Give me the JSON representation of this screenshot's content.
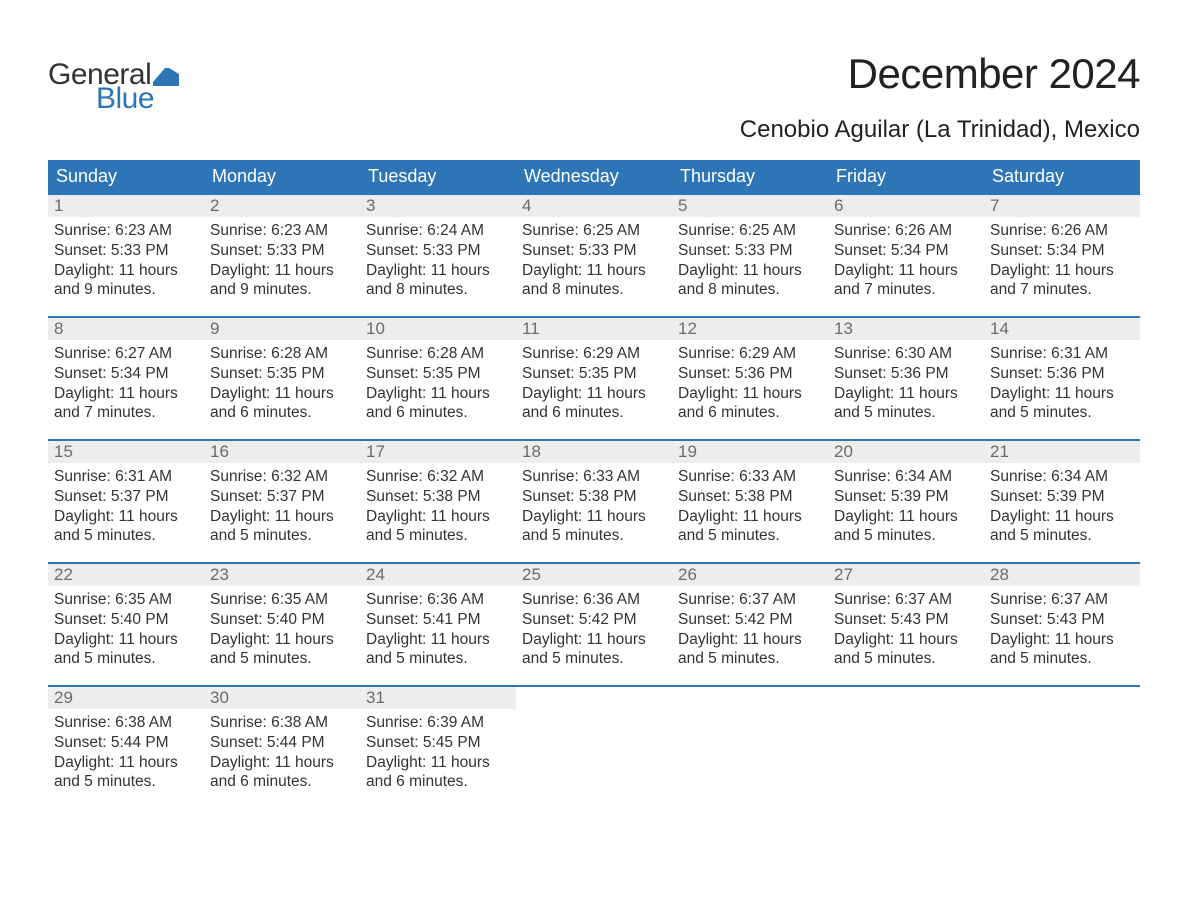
{
  "logo": {
    "general": "General",
    "blue": "Blue",
    "flag_color": "#2e75b6"
  },
  "title": "December 2024",
  "location": "Cenobio Aguilar (La Trinidad), Mexico",
  "colors": {
    "header_bg": "#2e75b6",
    "header_text": "#ffffff",
    "daynum_bg": "#ededed",
    "daynum_text": "#6b6b6b",
    "body_text": "#333333",
    "row_border": "#2e75b6",
    "page_bg": "#ffffff"
  },
  "typography": {
    "title_fontsize": 42,
    "location_fontsize": 24,
    "header_fontsize": 18,
    "daynum_fontsize": 17,
    "cell_fontsize": 15.5,
    "logo_fontsize": 30
  },
  "weekdays": [
    "Sunday",
    "Monday",
    "Tuesday",
    "Wednesday",
    "Thursday",
    "Friday",
    "Saturday"
  ],
  "weeks": [
    [
      {
        "day": "1",
        "sunrise": "6:23 AM",
        "sunset": "5:33 PM",
        "daylight": "11 hours and 9 minutes."
      },
      {
        "day": "2",
        "sunrise": "6:23 AM",
        "sunset": "5:33 PM",
        "daylight": "11 hours and 9 minutes."
      },
      {
        "day": "3",
        "sunrise": "6:24 AM",
        "sunset": "5:33 PM",
        "daylight": "11 hours and 8 minutes."
      },
      {
        "day": "4",
        "sunrise": "6:25 AM",
        "sunset": "5:33 PM",
        "daylight": "11 hours and 8 minutes."
      },
      {
        "day": "5",
        "sunrise": "6:25 AM",
        "sunset": "5:33 PM",
        "daylight": "11 hours and 8 minutes."
      },
      {
        "day": "6",
        "sunrise": "6:26 AM",
        "sunset": "5:34 PM",
        "daylight": "11 hours and 7 minutes."
      },
      {
        "day": "7",
        "sunrise": "6:26 AM",
        "sunset": "5:34 PM",
        "daylight": "11 hours and 7 minutes."
      }
    ],
    [
      {
        "day": "8",
        "sunrise": "6:27 AM",
        "sunset": "5:34 PM",
        "daylight": "11 hours and 7 minutes."
      },
      {
        "day": "9",
        "sunrise": "6:28 AM",
        "sunset": "5:35 PM",
        "daylight": "11 hours and 6 minutes."
      },
      {
        "day": "10",
        "sunrise": "6:28 AM",
        "sunset": "5:35 PM",
        "daylight": "11 hours and 6 minutes."
      },
      {
        "day": "11",
        "sunrise": "6:29 AM",
        "sunset": "5:35 PM",
        "daylight": "11 hours and 6 minutes."
      },
      {
        "day": "12",
        "sunrise": "6:29 AM",
        "sunset": "5:36 PM",
        "daylight": "11 hours and 6 minutes."
      },
      {
        "day": "13",
        "sunrise": "6:30 AM",
        "sunset": "5:36 PM",
        "daylight": "11 hours and 5 minutes."
      },
      {
        "day": "14",
        "sunrise": "6:31 AM",
        "sunset": "5:36 PM",
        "daylight": "11 hours and 5 minutes."
      }
    ],
    [
      {
        "day": "15",
        "sunrise": "6:31 AM",
        "sunset": "5:37 PM",
        "daylight": "11 hours and 5 minutes."
      },
      {
        "day": "16",
        "sunrise": "6:32 AM",
        "sunset": "5:37 PM",
        "daylight": "11 hours and 5 minutes."
      },
      {
        "day": "17",
        "sunrise": "6:32 AM",
        "sunset": "5:38 PM",
        "daylight": "11 hours and 5 minutes."
      },
      {
        "day": "18",
        "sunrise": "6:33 AM",
        "sunset": "5:38 PM",
        "daylight": "11 hours and 5 minutes."
      },
      {
        "day": "19",
        "sunrise": "6:33 AM",
        "sunset": "5:38 PM",
        "daylight": "11 hours and 5 minutes."
      },
      {
        "day": "20",
        "sunrise": "6:34 AM",
        "sunset": "5:39 PM",
        "daylight": "11 hours and 5 minutes."
      },
      {
        "day": "21",
        "sunrise": "6:34 AM",
        "sunset": "5:39 PM",
        "daylight": "11 hours and 5 minutes."
      }
    ],
    [
      {
        "day": "22",
        "sunrise": "6:35 AM",
        "sunset": "5:40 PM",
        "daylight": "11 hours and 5 minutes."
      },
      {
        "day": "23",
        "sunrise": "6:35 AM",
        "sunset": "5:40 PM",
        "daylight": "11 hours and 5 minutes."
      },
      {
        "day": "24",
        "sunrise": "6:36 AM",
        "sunset": "5:41 PM",
        "daylight": "11 hours and 5 minutes."
      },
      {
        "day": "25",
        "sunrise": "6:36 AM",
        "sunset": "5:42 PM",
        "daylight": "11 hours and 5 minutes."
      },
      {
        "day": "26",
        "sunrise": "6:37 AM",
        "sunset": "5:42 PM",
        "daylight": "11 hours and 5 minutes."
      },
      {
        "day": "27",
        "sunrise": "6:37 AM",
        "sunset": "5:43 PM",
        "daylight": "11 hours and 5 minutes."
      },
      {
        "day": "28",
        "sunrise": "6:37 AM",
        "sunset": "5:43 PM",
        "daylight": "11 hours and 5 minutes."
      }
    ],
    [
      {
        "day": "29",
        "sunrise": "6:38 AM",
        "sunset": "5:44 PM",
        "daylight": "11 hours and 5 minutes."
      },
      {
        "day": "30",
        "sunrise": "6:38 AM",
        "sunset": "5:44 PM",
        "daylight": "11 hours and 6 minutes."
      },
      {
        "day": "31",
        "sunrise": "6:39 AM",
        "sunset": "5:45 PM",
        "daylight": "11 hours and 6 minutes."
      },
      null,
      null,
      null,
      null
    ]
  ],
  "labels": {
    "sunrise": "Sunrise: ",
    "sunset": "Sunset: ",
    "daylight": "Daylight: "
  }
}
